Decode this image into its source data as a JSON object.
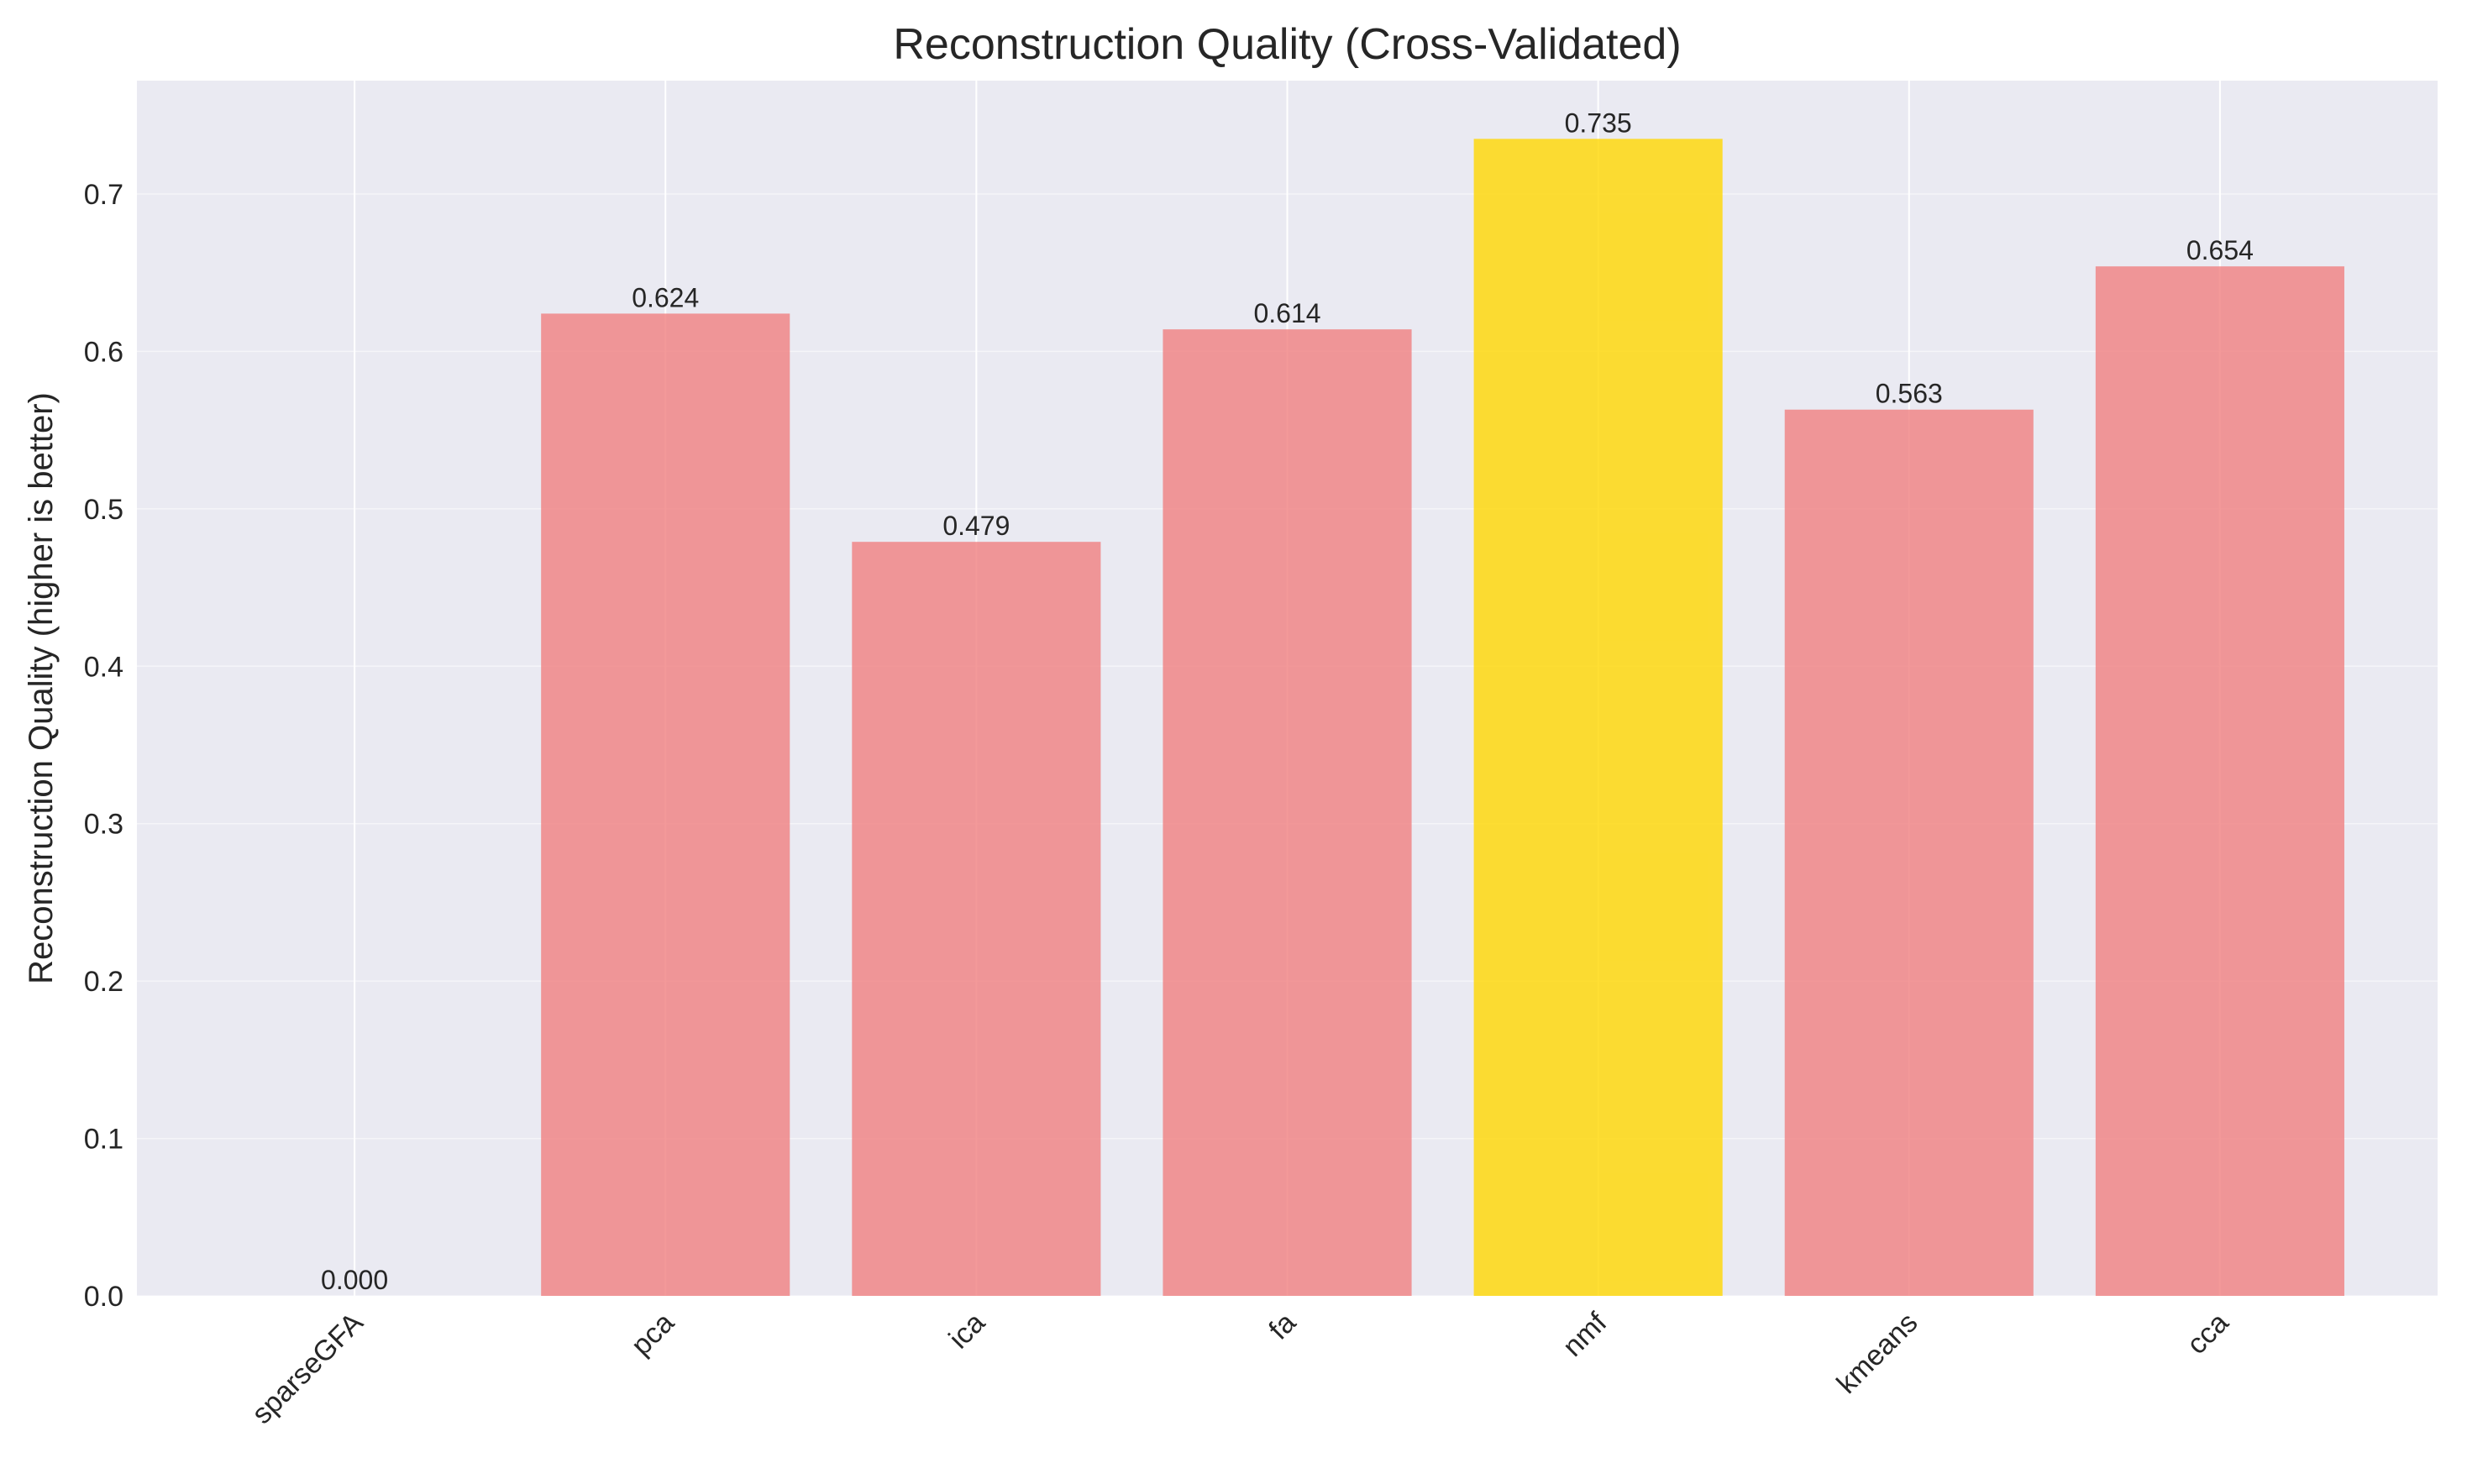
{
  "chart_data": {
    "type": "bar",
    "title": "Reconstruction Quality (Cross-Validated)",
    "xlabel": "",
    "ylabel": "Reconstruction Quality (higher is better)",
    "categories": [
      "sparseGFA",
      "pca",
      "ica",
      "fa",
      "nmf",
      "kmeans",
      "cca"
    ],
    "values": [
      0.0,
      0.624,
      0.479,
      0.614,
      0.735,
      0.563,
      0.654
    ],
    "value_labels": [
      "0.000",
      "0.624",
      "0.479",
      "0.614",
      "0.735",
      "0.563",
      "0.654"
    ],
    "bar_colors": [
      "#f08080",
      "#f08080",
      "#f08080",
      "#f08080",
      "#ffd700",
      "#f08080",
      "#f08080"
    ],
    "highlighted_category": "nmf",
    "ylim": [
      0,
      0.772
    ],
    "yticks": [
      0.0,
      0.1,
      0.2,
      0.3,
      0.4,
      0.5,
      0.6,
      0.7
    ],
    "ytick_labels": [
      "0.0",
      "0.1",
      "0.2",
      "0.3",
      "0.4",
      "0.5",
      "0.6",
      "0.7"
    ],
    "xtick_rotation_deg": 45,
    "grid": true,
    "legend": "none",
    "colors": {
      "plot_background": "#eaeaf2",
      "grid": "#ffffff",
      "text": "#262626"
    }
  }
}
